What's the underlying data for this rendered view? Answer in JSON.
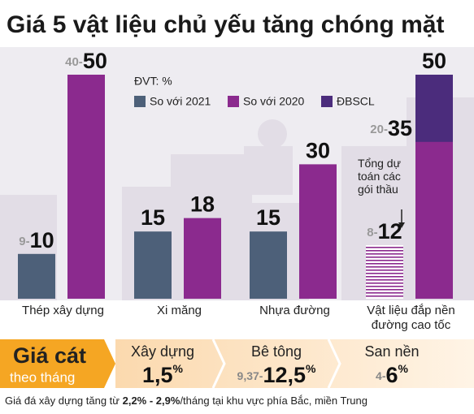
{
  "chart_data": {
    "type": "bar",
    "title": "Giá 5 vật liệu chủ yếu tăng chóng mặt",
    "unit": "ĐVT: %",
    "categories": [
      "Thép xây dựng",
      "Xi măng",
      "Nhựa đường",
      "Vật liệu đắp nền đường cao tốc"
    ],
    "series": [
      {
        "name": "So với 2021",
        "color": "#4d6079",
        "values": [
          10,
          15,
          15,
          12
        ],
        "range_labels": [
          "9-",
          null,
          null,
          "8-"
        ],
        "hatched": [
          false,
          false,
          false,
          true
        ]
      },
      {
        "name": "So với 2020",
        "color": "#8b2a8e",
        "values": [
          50,
          18,
          30,
          35
        ],
        "range_labels": [
          "40-",
          null,
          null,
          "20-"
        ]
      },
      {
        "name": "ĐBSCL",
        "color": "#4b2c7c",
        "values": [
          null,
          null,
          null,
          50
        ]
      }
    ],
    "ylim": [
      0,
      50
    ],
    "legend": "top",
    "annotation": "Tổng dự toán các gói thầu"
  },
  "sand_prices": {
    "title": "Giá cát",
    "subtitle": "theo tháng",
    "items": [
      {
        "name": "Xây dựng",
        "low": null,
        "value": "1,5",
        "unit": "%"
      },
      {
        "name": "Bê tông",
        "low": "9,37-",
        "value": "12,5",
        "unit": "%"
      },
      {
        "name": "San nền",
        "low": "4-",
        "value": "6",
        "unit": "%"
      }
    ]
  },
  "footnote": [
    "Giá đá xây dựng tăng từ ",
    "2,2% - 2,9%",
    "/tháng tại khu vực phía Bắc, miền Trung"
  ]
}
